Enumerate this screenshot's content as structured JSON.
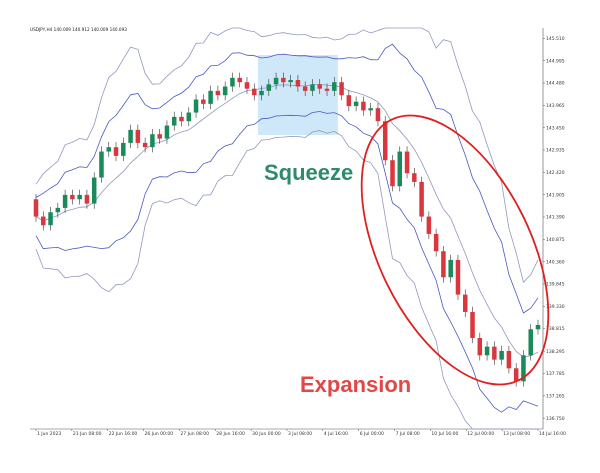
{
  "chart_data": {
    "type": "candlestick",
    "symbol_header": "USDJPY,H4  140.009 140.912 140.009 140.093",
    "x_ticks": [
      "1 Jun 2023",
      "21 Jun 08:00",
      "22 Jun 16:00",
      "26 Jun 00:00",
      "27 Jun 08:00",
      "28 Jun 16:00",
      "30 Jun 00:00",
      "3 Jul 08:00",
      "4 Jul 16:00",
      "6 Jul 00:00",
      "7 Jul 08:00",
      "10 Jul 16:00",
      "12 Jul 00:00",
      "13 Jul 08:00",
      "14 Jul 16:00"
    ],
    "y_ticks": [
      "145.510",
      "144.995",
      "144.480",
      "143.965",
      "143.450",
      "142.935",
      "142.420",
      "141.905",
      "141.390",
      "140.875",
      "140.360",
      "139.845",
      "139.330",
      "138.815",
      "138.295",
      "137.785",
      "137.265",
      "136.750"
    ],
    "ylim": [
      136.5,
      145.75
    ],
    "candles": [
      [
        141.8,
        141.4
      ],
      [
        141.4,
        141.2
      ],
      [
        141.2,
        141.5
      ],
      [
        141.5,
        141.6
      ],
      [
        141.6,
        141.9
      ],
      [
        141.9,
        141.8
      ],
      [
        141.8,
        141.9
      ],
      [
        141.9,
        141.7
      ],
      [
        141.7,
        142.3
      ],
      [
        142.3,
        142.9
      ],
      [
        142.9,
        143.0
      ],
      [
        143.0,
        142.8
      ],
      [
        142.8,
        143.1
      ],
      [
        143.1,
        143.4
      ],
      [
        143.4,
        143.1
      ],
      [
        143.1,
        143.0
      ],
      [
        143.0,
        143.3
      ],
      [
        143.3,
        143.2
      ],
      [
        143.2,
        143.5
      ],
      [
        143.5,
        143.7
      ],
      [
        143.7,
        143.6
      ],
      [
        143.6,
        143.8
      ],
      [
        143.8,
        144.1
      ],
      [
        144.1,
        144.0
      ],
      [
        144.0,
        144.3
      ],
      [
        144.3,
        144.2
      ],
      [
        144.2,
        144.4
      ],
      [
        144.4,
        144.6
      ],
      [
        144.6,
        144.5
      ],
      [
        144.5,
        144.35
      ],
      [
        144.35,
        144.2
      ],
      [
        144.2,
        144.3
      ],
      [
        144.3,
        144.45
      ],
      [
        144.45,
        144.6
      ],
      [
        144.6,
        144.5
      ],
      [
        144.5,
        144.55
      ],
      [
        144.55,
        144.4
      ],
      [
        144.4,
        144.3
      ],
      [
        144.3,
        144.45
      ],
      [
        144.45,
        144.35
      ],
      [
        144.35,
        144.3
      ],
      [
        144.3,
        144.5
      ],
      [
        144.5,
        144.2
      ],
      [
        144.2,
        143.95
      ],
      [
        143.95,
        144.05
      ],
      [
        144.05,
        143.85
      ],
      [
        143.85,
        143.9
      ],
      [
        143.9,
        143.6
      ],
      [
        143.6,
        142.7
      ],
      [
        142.7,
        142.1
      ],
      [
        142.1,
        142.9
      ],
      [
        142.9,
        142.4
      ],
      [
        142.4,
        142.2
      ],
      [
        142.2,
        141.4
      ],
      [
        141.4,
        141.0
      ],
      [
        141.0,
        140.6
      ],
      [
        140.6,
        140.0
      ],
      [
        140.0,
        140.4
      ],
      [
        140.4,
        139.6
      ],
      [
        139.6,
        139.2
      ],
      [
        139.2,
        138.6
      ],
      [
        138.6,
        138.2
      ],
      [
        138.2,
        138.4
      ],
      [
        138.4,
        138.1
      ],
      [
        138.1,
        138.3
      ],
      [
        138.3,
        137.9
      ],
      [
        137.9,
        137.6
      ],
      [
        137.6,
        138.2
      ],
      [
        138.2,
        138.8
      ],
      [
        138.8,
        138.9
      ]
    ],
    "squeeze_region": {
      "x_from_candle": 31,
      "x_to_candle": 41
    },
    "annotations": [
      "Squeeze",
      "Expansion"
    ],
    "bands": {
      "inner_k": 2,
      "outer_k": 3.4
    },
    "colors": {
      "bull": "#1a8a5a",
      "bear": "#d9363e",
      "band": "#4a59c4",
      "band_light": "#9099bd",
      "squeeze_box": "#bde0f7",
      "ellipse": "#e02020",
      "squeeze_text": "#2e8b6a",
      "expansion_text": "#e04848"
    }
  }
}
